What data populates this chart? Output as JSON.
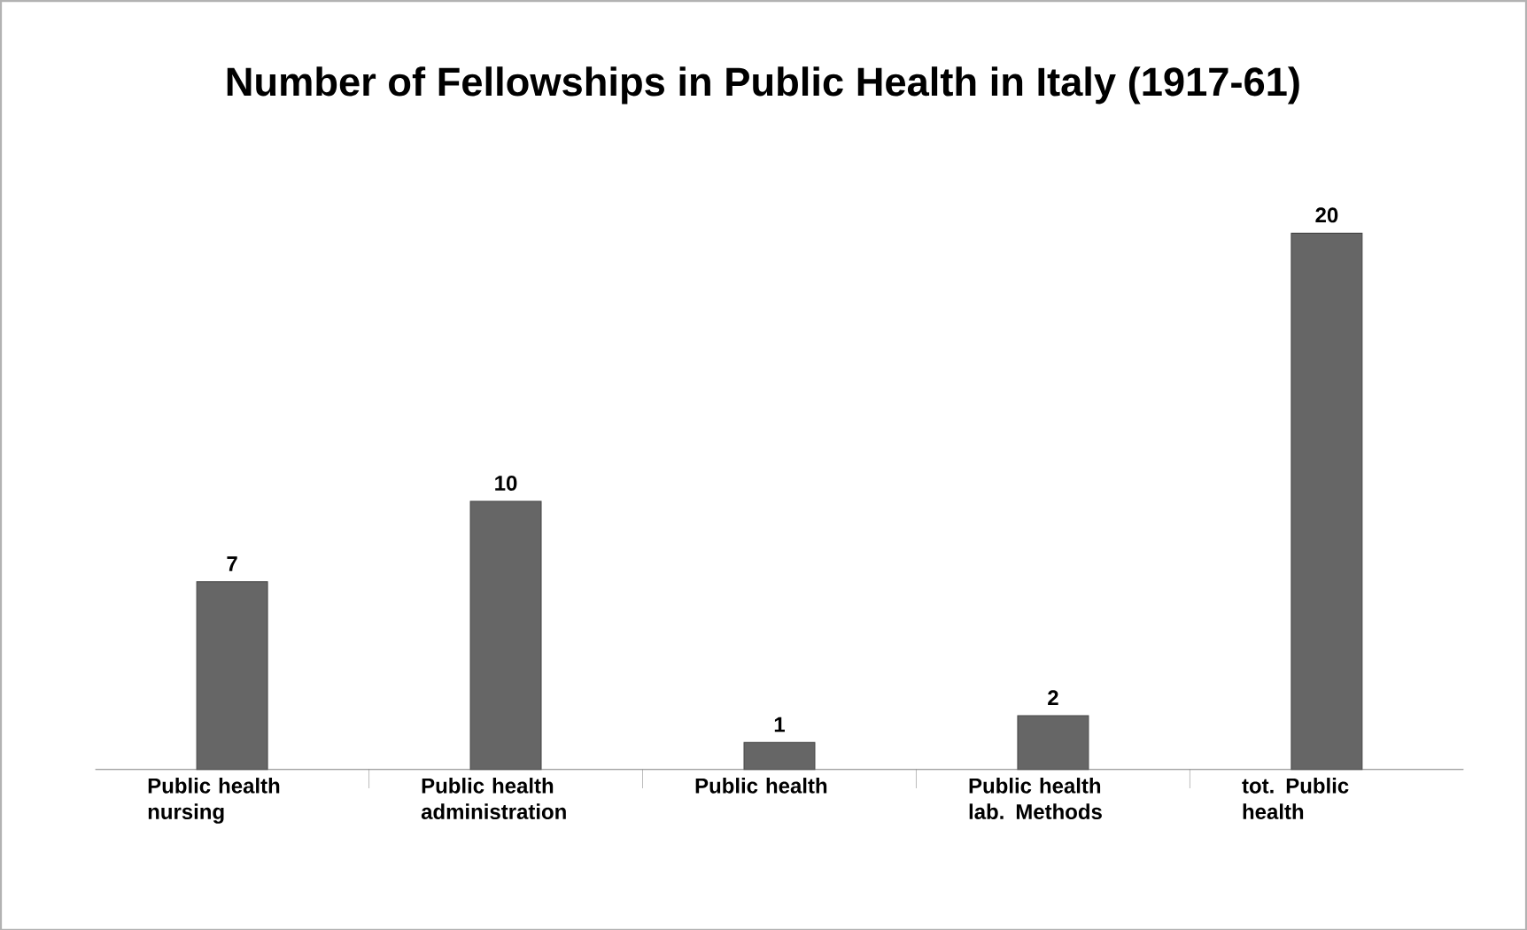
{
  "chart_data": {
    "type": "bar",
    "title": "Number of Fellowships in Public Health in Italy (1917-61)",
    "categories": [
      "Public health nursing",
      "Public health administration",
      "Public health",
      "Public health lab. Methods",
      "tot. Public health"
    ],
    "values": [
      7,
      10,
      1,
      2,
      20
    ],
    "color": "#666666",
    "data_labels": true
  }
}
